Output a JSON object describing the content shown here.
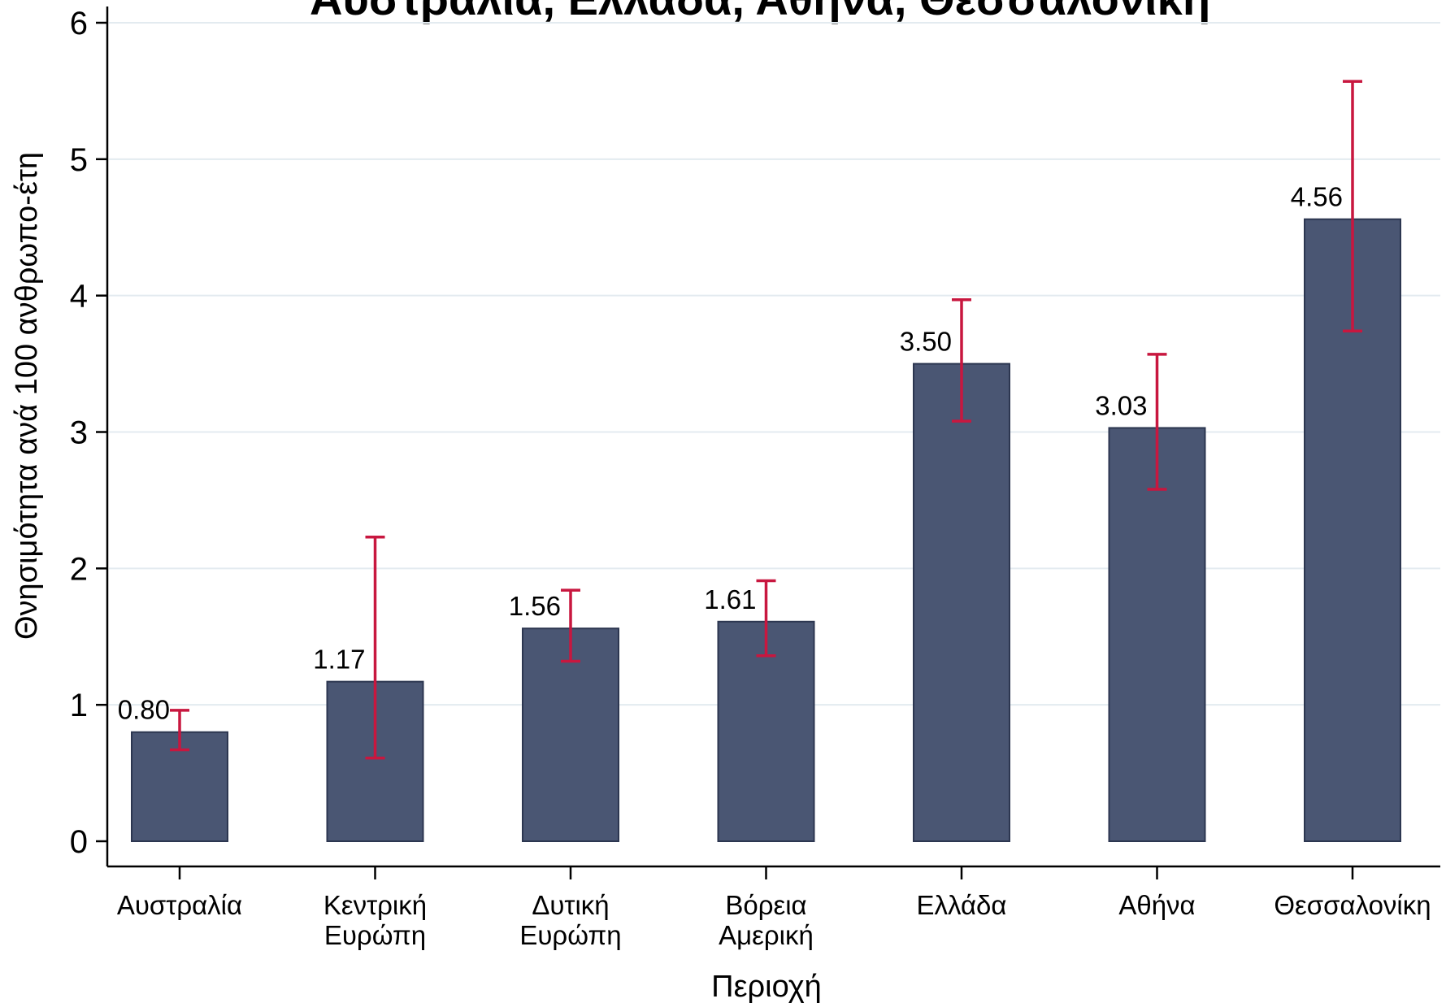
{
  "chart_data": {
    "type": "bar",
    "title": "Αυστραλία, Ελλάδα, Αθήνα, Θεσσαλονίκη",
    "xlabel": "Περιοχή",
    "ylabel": "Θνησιμότητα ανά 100 ανθρωπο-έτη",
    "ylim": [
      0,
      6
    ],
    "yticks": [
      "0",
      "1",
      "2",
      "3",
      "4",
      "5",
      "6"
    ],
    "grid": true,
    "categories": [
      [
        "Αυστραλία"
      ],
      [
        "Κεντρική",
        "Ευρώπη"
      ],
      [
        "Δυτική",
        "Ευρώπη"
      ],
      [
        "Βόρεια",
        "Αμερική"
      ],
      [
        "Ελλάδα"
      ],
      [
        "Αθήνα"
      ],
      [
        "Θεσσαλονίκη"
      ]
    ],
    "values": [
      0.8,
      1.17,
      1.56,
      1.61,
      3.5,
      3.03,
      4.56
    ],
    "value_labels": [
      "0.80",
      "1.17",
      "1.56",
      "1.61",
      "3.50",
      "3.03",
      "4.56"
    ],
    "error_low": [
      0.67,
      0.61,
      1.32,
      1.36,
      3.08,
      2.58,
      3.74
    ],
    "error_high": [
      0.96,
      2.23,
      1.84,
      1.91,
      3.97,
      3.57,
      5.57
    ],
    "colors": {
      "bar": "#4a5673",
      "bar_edge": "#2c3650",
      "error": "#c8173f",
      "grid": "#e3ebf0",
      "axis": "#000000"
    }
  }
}
